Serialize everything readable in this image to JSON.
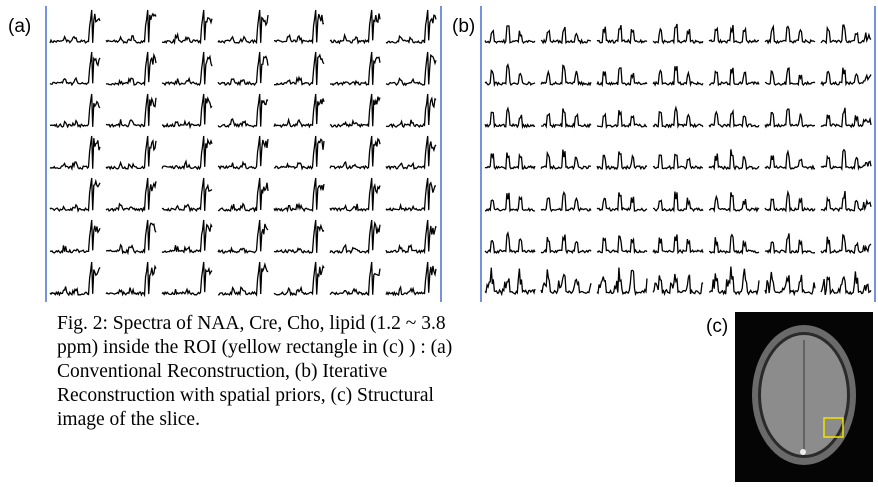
{
  "panels": [
    {
      "label": "(a)"
    },
    {
      "label": "(b)"
    },
    {
      "label": "(c)"
    }
  ],
  "caption": {
    "lines": [
      "Fig. 2: Spectra of NAA, Cre, Cho, lipid (1.2 ~ 3.8",
      "ppm) inside the ROI (yellow rectangle in (c) ) : (a)",
      "Conventional Reconstruction, (b) Iterative",
      "Reconstruction with spatial priors, (c) Structural",
      "image of the slice."
    ]
  }
}
